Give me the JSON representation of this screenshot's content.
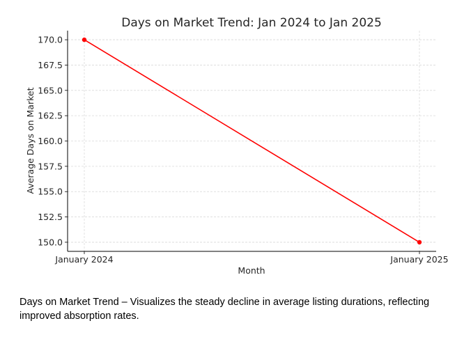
{
  "chart_data": {
    "type": "line",
    "title": "Days on Market Trend: Jan 2024 to Jan 2025",
    "xlabel": "Month",
    "ylabel": "Average Days on Market",
    "categories": [
      "January 2024",
      "January 2025"
    ],
    "series": [
      {
        "values": [
          170.0,
          150.0
        ],
        "color": "#ff0000"
      }
    ],
    "ylim": [
      149.1,
      170.9
    ],
    "yticks": [
      150.0,
      152.5,
      155.0,
      157.5,
      160.0,
      162.5,
      165.0,
      167.5,
      170.0
    ],
    "ytick_labels": [
      "150.0",
      "152.5",
      "155.0",
      "157.5",
      "160.0",
      "162.5",
      "165.0",
      "167.5",
      "170.0"
    ],
    "grid": true,
    "grid_color": "#d9d9d9"
  },
  "caption": "Days on Market Trend – Visualizes the steady decline in average listing durations, reflecting improved absorption rates."
}
